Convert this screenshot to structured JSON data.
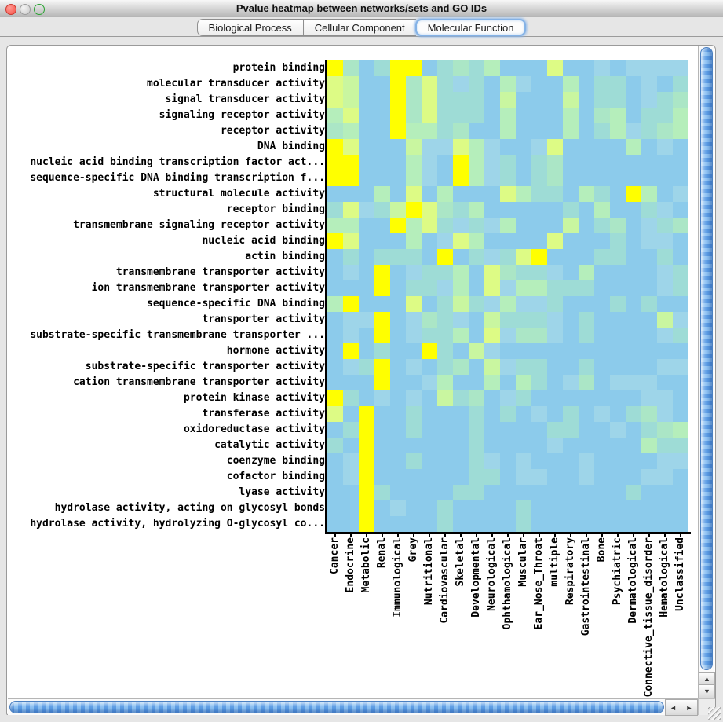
{
  "window": {
    "title": "Pvalue heatmap between networks/sets and GO IDs"
  },
  "tabs": [
    {
      "label": "Biological Process",
      "selected": false
    },
    {
      "label": "Cellular Component",
      "selected": false
    },
    {
      "label": "Molecular Function",
      "selected": true
    }
  ],
  "scrollbar": {
    "up_arrow": "▲",
    "down_arrow": "▼",
    "left_arrow": "◄",
    "right_arrow": "►"
  },
  "chart_data": {
    "type": "heatmap",
    "title": "Pvalue heatmap between networks/sets and GO IDs",
    "xlabel": "",
    "ylabel": "",
    "legend": "none",
    "value_scale_note": "cell values are p-value color levels 0 (low significance, blue) to 7 (high significance, yellow)",
    "palette": [
      "#8ccbeb",
      "#9ed5e9",
      "#9edcd6",
      "#abe6c6",
      "#b5eebb",
      "#c9f6a0",
      "#ddfb85",
      "#ffff00"
    ],
    "columns": [
      "Cancer",
      "Endocrine",
      "Metabolic",
      "Renal",
      "Immunological",
      "Grey",
      "Nutritional",
      "Cardiovascular",
      "Skeletal",
      "Developmental",
      "Neurological",
      "Ophthamological",
      "Muscular",
      "Ear_Nose_Throat",
      "multiple",
      "Respiratory",
      "Gastrointestinal",
      "Bone",
      "Psychiatric",
      "Dermatological",
      "Connective_tissue_disorder",
      "Hematological",
      "Unclassified"
    ],
    "rows": [
      "protein binding",
      "molecular transducer activity",
      "signal transducer activity",
      "signaling receptor activity",
      "receptor activity",
      "DNA binding",
      "nucleic acid binding transcription factor act...",
      "sequence-specific DNA binding transcription f...",
      "structural molecule activity",
      "receptor binding",
      "transmembrane signaling receptor activity",
      "nucleic acid binding",
      "actin binding",
      "transmembrane transporter activity",
      "ion transmembrane transporter activity",
      "sequence-specific DNA binding",
      "transporter activity",
      "substrate-specific transmembrane transporter ...",
      "hormone activity",
      "substrate-specific transporter activity",
      "cation transmembrane transporter activity",
      "protein kinase activity",
      "transferase activity",
      "oxidoreductase activity",
      "catalytic activity",
      "coenzyme binding",
      "cofactor binding",
      "lyase activity",
      "hydrolase activity, acting on glycosyl bonds",
      "hydrolase activity, hydrolyzing O-glycosyl co..."
    ],
    "grid": [
      "73027702324000600101111",
      "65007362120410040220102",
      "65007362220500050220123",
      "46007362220400040340224",
      "34007442300400040241234",
      "76000511641001600004010",
      "77000410741202300000000",
      "77000410741202300000000",
      "00040604000642204207401",
      "26125763240000020400210",
      "44007462121400050230123",
      "76000401640000600020110",
      "02022207021267000220020",
      "01070122406322104000012",
      "00070221406144222000012",
      "47000602521411200020200",
      "01170132105222102000051",
      "01070122406133102000012",
      "07020072051000000000000",
      "01270102305122002000011",
      "00070014004042013011100",
      "72010105230120000000110",
      "60700200020201020102310",
      "02700200020000220010234",
      "20700000020000100000422",
      "01700200021010001000011",
      "01700000022011001000110",
      "00720000220000000002000",
      "00701002000020000000000",
      "00700002000020000000000"
    ]
  }
}
